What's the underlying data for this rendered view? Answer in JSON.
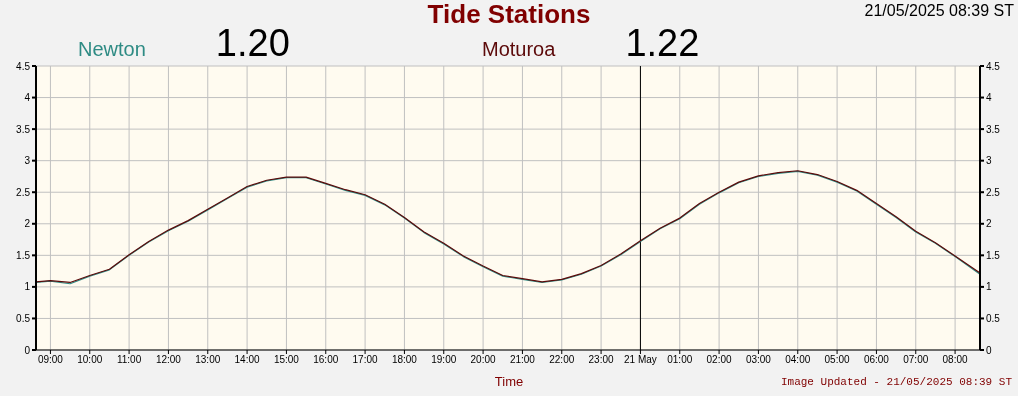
{
  "chart_data": {
    "type": "line",
    "title": "Tide Stations",
    "subtitle": "21/05/2025 08:39 ST",
    "xlabel": "Time",
    "annotations": [
      "1.20",
      "1.22",
      "Image Updated - 21/05/2025 08:39 ST"
    ],
    "x": [
      "2025-05-20T08:38",
      "2025-05-20T09:00",
      "2025-05-20T09:30",
      "2025-05-20T10:00",
      "2025-05-20T10:30",
      "2025-05-20T11:00",
      "2025-05-20T11:30",
      "2025-05-20T12:00",
      "2025-05-20T12:30",
      "2025-05-20T13:00",
      "2025-05-20T13:30",
      "2025-05-20T14:00",
      "2025-05-20T14:30",
      "2025-05-20T15:00",
      "2025-05-20T15:30",
      "2025-05-20T16:00",
      "2025-05-20T16:30",
      "2025-05-20T17:00",
      "2025-05-20T17:30",
      "2025-05-20T18:00",
      "2025-05-20T18:30",
      "2025-05-20T19:00",
      "2025-05-20T19:30",
      "2025-05-20T20:00",
      "2025-05-20T20:30",
      "2025-05-20T21:00",
      "2025-05-20T21:30",
      "2025-05-20T22:00",
      "2025-05-20T22:30",
      "2025-05-20T23:00",
      "2025-05-20T23:30",
      "2025-05-21T00:00",
      "2025-05-21T00:30",
      "2025-05-21T01:00",
      "2025-05-21T01:30",
      "2025-05-21T02:00",
      "2025-05-21T02:30",
      "2025-05-21T03:00",
      "2025-05-21T03:30",
      "2025-05-21T04:00",
      "2025-05-21T04:30",
      "2025-05-21T05:00",
      "2025-05-21T05:30",
      "2025-05-21T06:00",
      "2025-05-21T06:30",
      "2025-05-21T07:00",
      "2025-05-21T07:30",
      "2025-05-21T08:00",
      "2025-05-21T08:38"
    ],
    "series": [
      {
        "name": "Newton",
        "color": "#2e8b84",
        "values": [
          1.07,
          1.09,
          1.05,
          1.17,
          1.27,
          1.5,
          1.71,
          1.89,
          2.04,
          2.22,
          2.4,
          2.58,
          2.68,
          2.73,
          2.73,
          2.63,
          2.53,
          2.45,
          2.3,
          2.09,
          1.86,
          1.68,
          1.48,
          1.32,
          1.17,
          1.12,
          1.07,
          1.11,
          1.2,
          1.33,
          1.51,
          1.72,
          1.92,
          2.08,
          2.31,
          2.49,
          2.65,
          2.75,
          2.8,
          2.83,
          2.77,
          2.66,
          2.52,
          2.31,
          2.1,
          1.87,
          1.69,
          1.48,
          1.2
        ]
      },
      {
        "name": "Moturoa",
        "color": "#5c0a0a",
        "values": [
          1.08,
          1.1,
          1.07,
          1.18,
          1.28,
          1.51,
          1.72,
          1.9,
          2.05,
          2.23,
          2.41,
          2.59,
          2.69,
          2.74,
          2.74,
          2.64,
          2.54,
          2.46,
          2.31,
          2.1,
          1.87,
          1.69,
          1.49,
          1.33,
          1.18,
          1.13,
          1.08,
          1.12,
          1.21,
          1.34,
          1.52,
          1.73,
          1.93,
          2.09,
          2.32,
          2.5,
          2.66,
          2.76,
          2.81,
          2.84,
          2.78,
          2.67,
          2.53,
          2.32,
          2.11,
          1.88,
          1.7,
          1.49,
          1.22
        ]
      }
    ],
    "xlim": [
      "2025-05-20T08:38",
      "2025-05-21T08:38"
    ],
    "xticks": [
      {
        "value": "2025-05-20T09:00",
        "label": "09:00"
      },
      {
        "value": "2025-05-20T10:00",
        "label": "10:00"
      },
      {
        "value": "2025-05-20T11:00",
        "label": "11:00"
      },
      {
        "value": "2025-05-20T12:00",
        "label": "12:00"
      },
      {
        "value": "2025-05-20T13:00",
        "label": "13:00"
      },
      {
        "value": "2025-05-20T14:00",
        "label": "14:00"
      },
      {
        "value": "2025-05-20T15:00",
        "label": "15:00"
      },
      {
        "value": "2025-05-20T16:00",
        "label": "16:00"
      },
      {
        "value": "2025-05-20T17:00",
        "label": "17:00"
      },
      {
        "value": "2025-05-20T18:00",
        "label": "18:00"
      },
      {
        "value": "2025-05-20T19:00",
        "label": "19:00"
      },
      {
        "value": "2025-05-20T20:00",
        "label": "20:00"
      },
      {
        "value": "2025-05-20T21:00",
        "label": "21:00"
      },
      {
        "value": "2025-05-20T22:00",
        "label": "22:00"
      },
      {
        "value": "2025-05-20T23:00",
        "label": "23:00"
      },
      {
        "value": "2025-05-21T00:00",
        "label": "21 May"
      },
      {
        "value": "2025-05-21T01:00",
        "label": "01:00"
      },
      {
        "value": "2025-05-21T02:00",
        "label": "02:00"
      },
      {
        "value": "2025-05-21T03:00",
        "label": "03:00"
      },
      {
        "value": "2025-05-21T04:00",
        "label": "04:00"
      },
      {
        "value": "2025-05-21T05:00",
        "label": "05:00"
      },
      {
        "value": "2025-05-21T06:00",
        "label": "06:00"
      },
      {
        "value": "2025-05-21T07:00",
        "label": "07:00"
      },
      {
        "value": "2025-05-21T08:00",
        "label": "08:00"
      }
    ],
    "ylim": [
      0,
      4.5
    ],
    "yticks": [
      0,
      0.5,
      1,
      1.5,
      2,
      2.5,
      3,
      3.5,
      4,
      4.5
    ],
    "y2lim": [
      0,
      4.5
    ],
    "y2ticks": [
      0,
      0.5,
      1,
      1.5,
      2,
      2.5,
      3,
      3.5,
      4,
      4.5
    ],
    "ref_lines": [
      {
        "axis": "x",
        "value": "2025-05-21T00:00",
        "color": "#000000"
      }
    ],
    "grid": true,
    "legend": "top",
    "marker": "none",
    "line_style": "solid"
  }
}
